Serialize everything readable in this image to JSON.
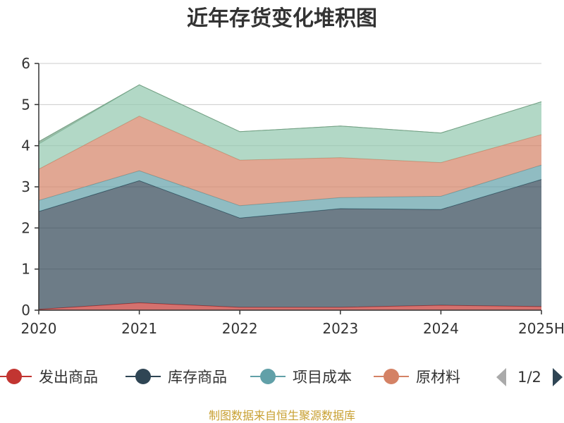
{
  "chart_data": {
    "type": "area",
    "stacked": true,
    "title": "近年存货变化堆积图",
    "xlabel": "",
    "ylabel": "",
    "categories": [
      "2020",
      "2021",
      "2022",
      "2023",
      "2024",
      "2025H"
    ],
    "ylim": [
      0,
      6
    ],
    "yticks": [
      0,
      1,
      2,
      3,
      4,
      5,
      6
    ],
    "grid": true,
    "series": [
      {
        "name": "发出商品",
        "color": "#c23531",
        "values": [
          0.02,
          0.18,
          0.07,
          0.07,
          0.12,
          0.09
        ]
      },
      {
        "name": "库存商品",
        "color": "#2f4554",
        "values": [
          2.38,
          2.97,
          2.17,
          2.4,
          2.33,
          3.09
        ]
      },
      {
        "name": "项目成本",
        "color": "#61a0a8",
        "values": [
          0.27,
          0.24,
          0.3,
          0.27,
          0.32,
          0.35
        ]
      },
      {
        "name": "原材料",
        "color": "#d48265",
        "values": [
          0.76,
          1.33,
          1.11,
          0.97,
          0.82,
          0.74
        ]
      },
      {
        "name": "",
        "color": "#91c7ae",
        "values": [
          0.61,
          0.76,
          0.69,
          0.77,
          0.72,
          0.8
        ]
      },
      {
        "name": "",
        "color": "#749f83",
        "values": [
          0.06,
          0.0,
          0.0,
          0.0,
          0.0,
          0.0
        ]
      }
    ],
    "legend": {
      "position": "bottom",
      "visible_items": [
        "发出商品",
        "库存商品",
        "项目成本",
        "原材料"
      ],
      "page": "1/2"
    },
    "footer": "制图数据来自恒生聚源数据库"
  }
}
